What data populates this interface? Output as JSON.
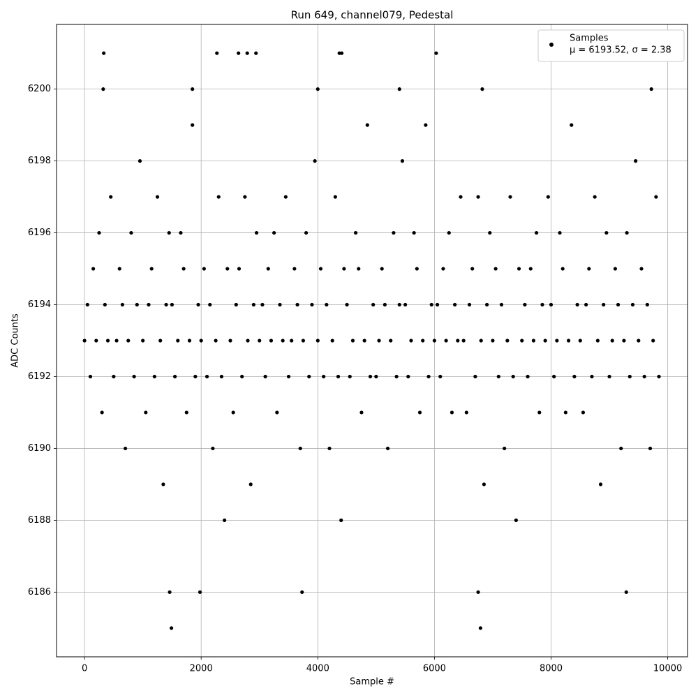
{
  "chart_data": {
    "type": "scatter",
    "title": "Run 649, channel079, Pedestal",
    "xlabel": "Sample #",
    "ylabel": "ADC Counts",
    "xlim": [
      -480,
      10340
    ],
    "ylim": [
      6184.2,
      6201.8
    ],
    "xticks": [
      0,
      2000,
      4000,
      6000,
      8000,
      10000
    ],
    "yticks": [
      6186,
      6188,
      6190,
      6192,
      6194,
      6196,
      6198,
      6200
    ],
    "grid": true,
    "legend": "upper right",
    "annotation": "μ = 6193.52, σ = 2.38",
    "x": [
      0,
      50,
      100,
      150,
      200,
      250,
      300,
      350,
      400,
      450,
      500,
      550,
      600,
      650,
      700,
      750,
      800,
      850,
      900,
      950,
      1000,
      1050,
      1100,
      1150,
      1200,
      1250,
      1300,
      1350,
      1400,
      1450,
      1500,
      1550,
      1600,
      1650,
      1700,
      1750,
      1800,
      1850,
      1900,
      1950,
      2000,
      2050,
      2100,
      2150,
      2200,
      2250,
      2300,
      2350,
      2400,
      2450,
      2500,
      2550,
      2600,
      2650,
      2700,
      2750,
      2800,
      2850,
      2900,
      2950,
      3000,
      3050,
      3100,
      3150,
      3200,
      3250,
      3300,
      3350,
      3400,
      3450,
      3500,
      3550,
      3600,
      3650,
      3700,
      3750,
      3800,
      3850,
      3900,
      3950,
      4000,
      4050,
      4100,
      4150,
      4200,
      4250,
      4300,
      4350,
      4400,
      4450,
      4500,
      4550,
      4600,
      4650,
      4700,
      4750,
      4800,
      4850,
      4900,
      4950,
      5000,
      5050,
      5100,
      5150,
      5200,
      5250,
      5300,
      5350,
      5400,
      5450,
      5500,
      5550,
      5600,
      5650,
      5700,
      5750,
      5800,
      5850,
      5900,
      5950,
      6000,
      6050,
      6100,
      6150,
      6200,
      6250,
      6300,
      6350,
      6400,
      6450,
      6500,
      6550,
      6600,
      6650,
      6700,
      6750,
      6800,
      6850,
      6900,
      6950,
      7000,
      7050,
      7100,
      7150,
      7200,
      7250,
      7300,
      7350,
      7400,
      7450,
      7500,
      7550,
      7600,
      7650,
      7700,
      7750,
      7800,
      7850,
      7900,
      7950,
      8000,
      8050,
      8100,
      8150,
      8200,
      8250,
      8300,
      8350,
      8400,
      8450,
      8500,
      8550,
      8600,
      8650,
      8700,
      8750,
      8800,
      8850,
      8900,
      8950,
      9000,
      9050,
      9100,
      9150,
      9200,
      9250,
      9300,
      9350,
      9400,
      9450,
      9500,
      9550,
      9600,
      9650,
      9700,
      9750,
      9800,
      9850,
      1490,
      6790,
      330,
      2270,
      2640,
      2790,
      2940,
      4370,
      4410,
      6030,
      1460,
      1980,
      3730,
      6750,
      9290,
      320,
      1850,
      4000,
      5400,
      6820,
      9720
    ],
    "series": [
      {
        "name": "Samples",
        "color": "#000000",
        "values": [
          6193,
          6194,
          6192,
          6195,
          6193,
          6196,
          6191,
          6194,
          6193,
          6197,
          6192,
          6193,
          6195,
          6194,
          6190,
          6193,
          6196,
          6192,
          6194,
          6198,
          6193,
          6191,
          6194,
          6195,
          6192,
          6197,
          6193,
          6189,
          6194,
          6196,
          6194,
          6192,
          6193,
          6196,
          6195,
          6191,
          6193,
          6199,
          6192,
          6194,
          6193,
          6195,
          6192,
          6194,
          6190,
          6193,
          6197,
          6192,
          6188,
          6195,
          6193,
          6191,
          6194,
          6195,
          6192,
          6197,
          6193,
          6189,
          6194,
          6196,
          6193,
          6194,
          6192,
          6195,
          6193,
          6196,
          6191,
          6194,
          6193,
          6197,
          6192,
          6193,
          6195,
          6194,
          6190,
          6193,
          6196,
          6192,
          6194,
          6198,
          6193,
          6195,
          6192,
          6194,
          6190,
          6193,
          6197,
          6192,
          6188,
          6195,
          6194,
          6192,
          6193,
          6196,
          6195,
          6191,
          6193,
          6199,
          6192,
          6194,
          6192,
          6193,
          6195,
          6194,
          6190,
          6193,
          6196,
          6192,
          6194,
          6198,
          6194,
          6192,
          6193,
          6196,
          6195,
          6191,
          6193,
          6199,
          6192,
          6194,
          6193,
          6194,
          6192,
          6195,
          6193,
          6196,
          6191,
          6194,
          6193,
          6197,
          6193,
          6191,
          6194,
          6195,
          6192,
          6197,
          6193,
          6189,
          6194,
          6196,
          6193,
          6195,
          6192,
          6194,
          6190,
          6193,
          6197,
          6192,
          6188,
          6195,
          6193,
          6194,
          6192,
          6195,
          6193,
          6196,
          6191,
          6194,
          6193,
          6197,
          6194,
          6192,
          6193,
          6196,
          6195,
          6191,
          6193,
          6199,
          6192,
          6194,
          6193,
          6191,
          6194,
          6195,
          6192,
          6197,
          6193,
          6189,
          6194,
          6196,
          6192,
          6193,
          6195,
          6194,
          6190,
          6193,
          6196,
          6192,
          6194,
          6198,
          6193,
          6195,
          6192,
          6194,
          6190,
          6193,
          6197,
          6192,
          6185,
          6185,
          6201,
          6201,
          6201,
          6201,
          6201,
          6201,
          6201,
          6201,
          6186,
          6186,
          6186,
          6186,
          6186,
          6200,
          6200,
          6200,
          6200,
          6200,
          6200
        ]
      }
    ]
  }
}
